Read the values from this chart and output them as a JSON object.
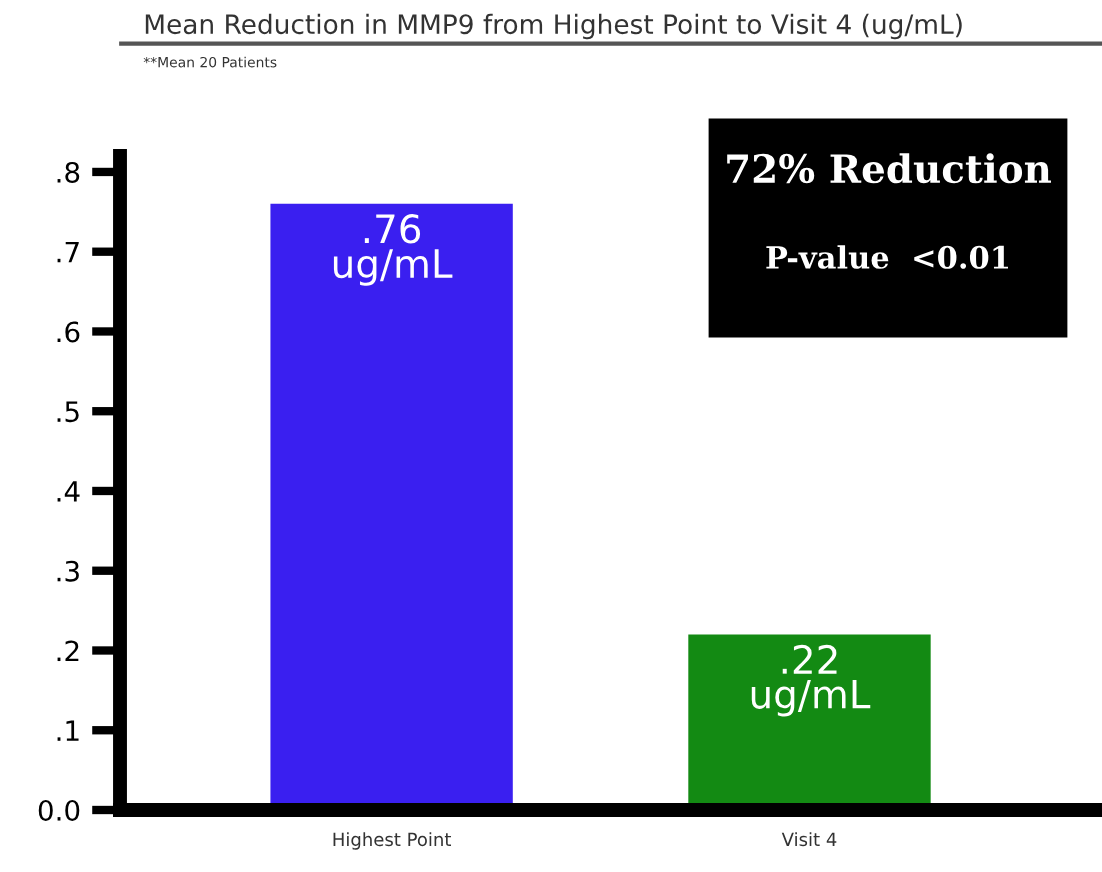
{
  "chart_data": {
    "type": "bar",
    "title": "Mean Reduction in MMP9 from Highest Point to Visit 4 (ug/mL)",
    "subtitle": "**Mean 20 Patients",
    "categories": [
      "Highest Point",
      "Visit 4"
    ],
    "values": [
      0.76,
      0.22
    ],
    "colors": [
      "#3a1ff0",
      "#138a13"
    ],
    "value_labels": [
      ".76\nug/mL",
      ".22\nug/mL"
    ],
    "annotations": [
      "72% Reduction",
      "P-value  <0.01"
    ],
    "ylim": [
      0,
      0.82
    ],
    "yticks": [
      {
        "value": 0,
        "label": "0.0"
      },
      {
        "value": 0.1,
        "label": ".1"
      },
      {
        "value": 0.2,
        "label": ".2"
      },
      {
        "value": 0.3,
        "label": ".3"
      },
      {
        "value": 0.4,
        "label": ".4"
      },
      {
        "value": 0.5,
        "label": ".5"
      },
      {
        "value": 0.6,
        "label": ".6"
      },
      {
        "value": 0.7,
        "label": ".7"
      },
      {
        "value": 0.8,
        "label": ".8"
      }
    ],
    "grid": false,
    "legend": false
  }
}
